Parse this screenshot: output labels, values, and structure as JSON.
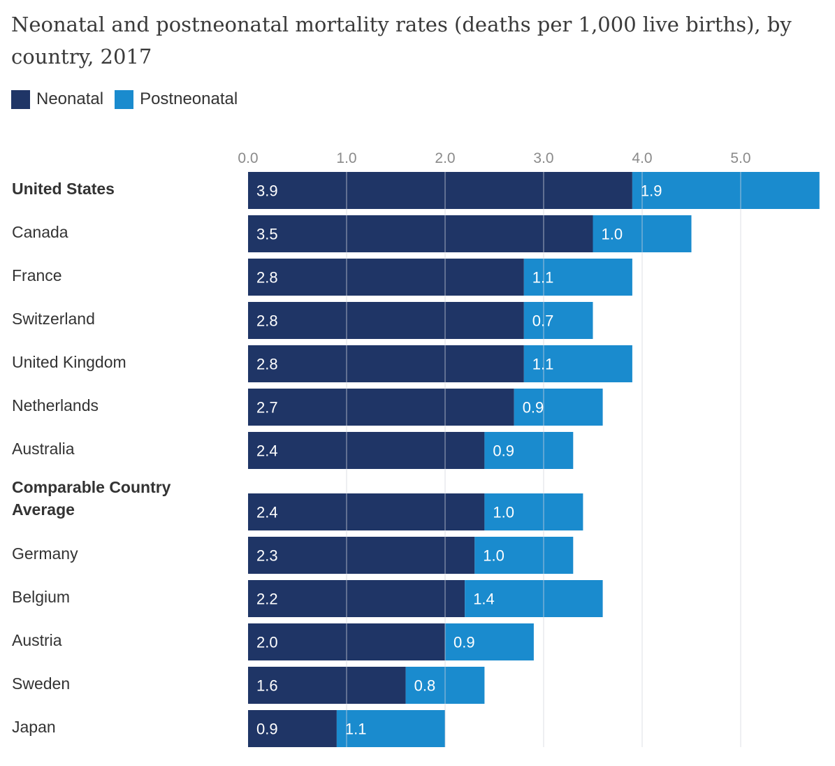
{
  "colors": {
    "neonatal": "#1f3566",
    "postneonatal": "#1a8bce",
    "grid": "#d0d4dc"
  },
  "chart_data": {
    "type": "bar",
    "orientation": "horizontal",
    "stacked": true,
    "title": "Neonatal and postneonatal mortality rates (deaths per 1,000 live births), by country, 2017",
    "xlim": [
      0,
      5.8
    ],
    "x_ticks": [
      "0.0",
      "1.0",
      "2.0",
      "3.0",
      "4.0",
      "5.0"
    ],
    "legend_position": "top-left",
    "grid": true,
    "categories": [
      "United States",
      "Canada",
      "France",
      "Switzerland",
      "United Kingdom",
      "Netherlands",
      "Australia",
      "Comparable Country Average",
      "Germany",
      "Belgium",
      "Austria",
      "Sweden",
      "Japan"
    ],
    "bold_categories": [
      "United States",
      "Comparable Country Average"
    ],
    "series": [
      {
        "name": "Neonatal",
        "values": [
          3.9,
          3.5,
          2.8,
          2.8,
          2.8,
          2.7,
          2.4,
          2.4,
          2.3,
          2.2,
          2.0,
          1.6,
          0.9
        ]
      },
      {
        "name": "Postneonatal",
        "values": [
          1.9,
          1.0,
          1.1,
          0.7,
          1.1,
          0.9,
          0.9,
          1.0,
          1.0,
          1.4,
          0.9,
          0.8,
          1.1
        ]
      }
    ]
  }
}
